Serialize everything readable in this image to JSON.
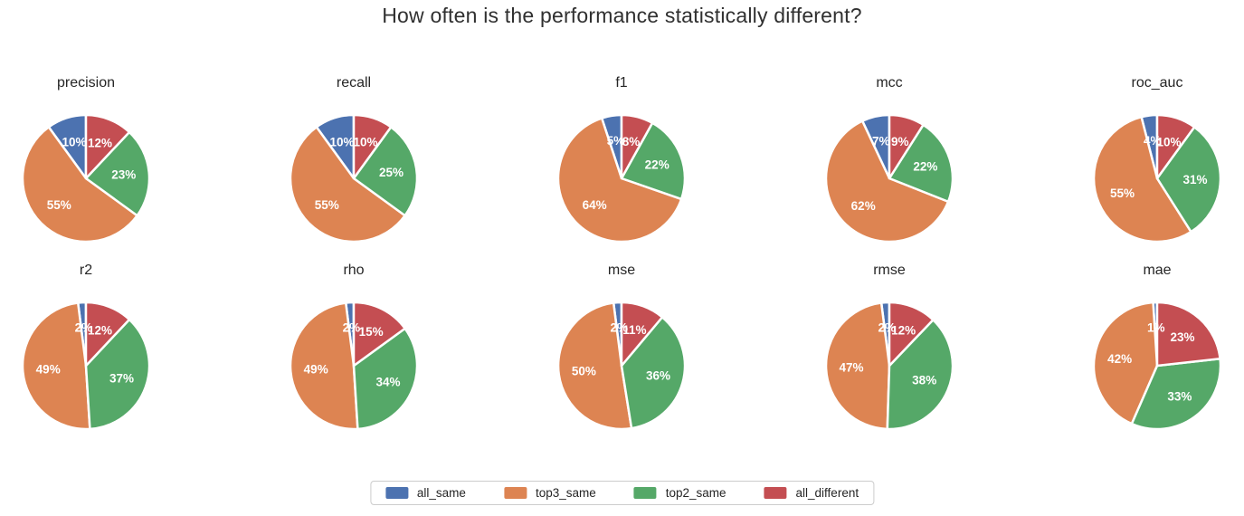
{
  "chart_data": {
    "type": "pie",
    "title": "How often is the performance statistically different?",
    "series_labels": [
      "all_same",
      "top3_same",
      "top2_same",
      "all_different"
    ],
    "colors": [
      "#4c72b0",
      "#dd8452",
      "#55a868",
      "#c44e52"
    ],
    "label_suffix": "%",
    "start_angle": 90,
    "direction": "counterclockwise",
    "label_distance": 0.6,
    "legend": {
      "position": "bottom",
      "entries": [
        {
          "label": "all_same",
          "color": "#4c72b0"
        },
        {
          "label": "top3_same",
          "color": "#dd8452"
        },
        {
          "label": "top2_same",
          "color": "#55a868"
        },
        {
          "label": "all_different",
          "color": "#c44e52"
        }
      ]
    },
    "pies": [
      {
        "title": "precision",
        "values": [
          10,
          55,
          23,
          12
        ]
      },
      {
        "title": "recall",
        "values": [
          10,
          55,
          25,
          10
        ]
      },
      {
        "title": "f1",
        "values": [
          5,
          64,
          22,
          8
        ]
      },
      {
        "title": "mcc",
        "values": [
          7,
          62,
          22,
          9
        ]
      },
      {
        "title": "roc_auc",
        "values": [
          4,
          55,
          31,
          10
        ]
      },
      {
        "title": "r2",
        "values": [
          2,
          49,
          37,
          12
        ]
      },
      {
        "title": "rho",
        "values": [
          2,
          49,
          34,
          15
        ]
      },
      {
        "title": "mse",
        "values": [
          2,
          50,
          36,
          11
        ]
      },
      {
        "title": "rmse",
        "values": [
          2,
          47,
          38,
          12
        ]
      },
      {
        "title": "mae",
        "values": [
          1,
          42,
          33,
          23
        ]
      }
    ]
  }
}
